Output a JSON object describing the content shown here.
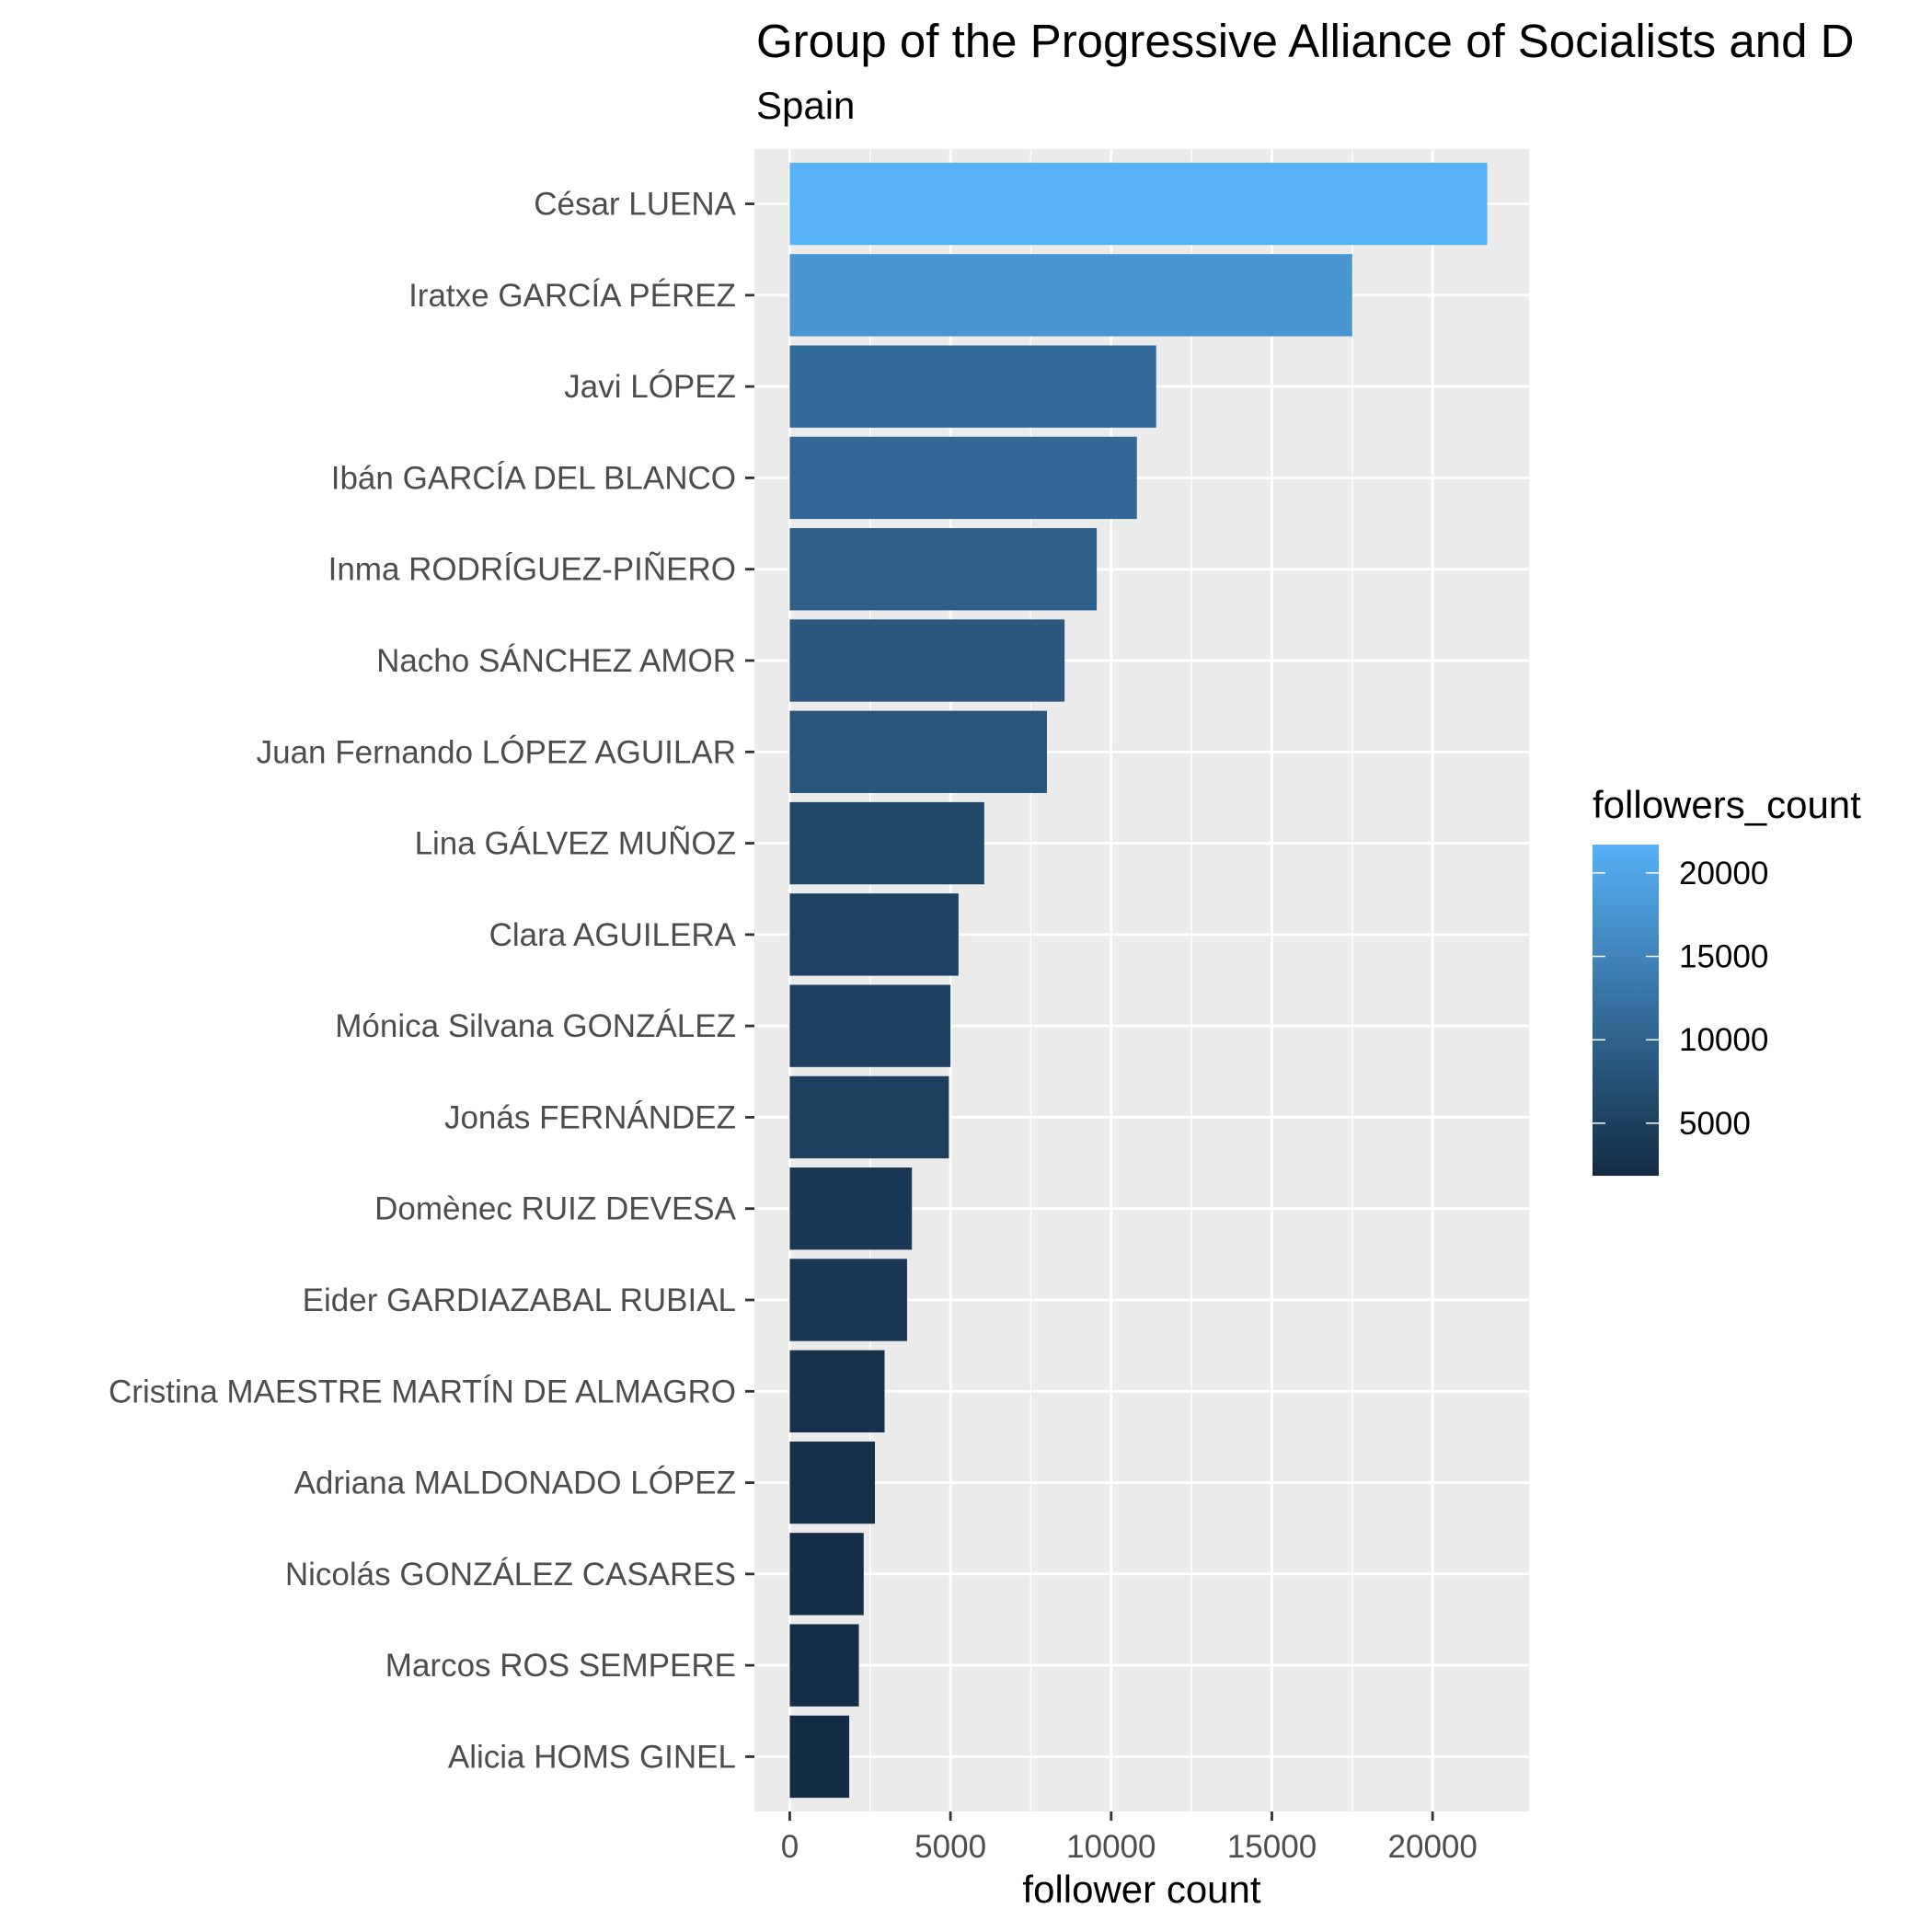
{
  "chart_data": {
    "type": "bar",
    "orientation": "horizontal",
    "title": "Group of the Progressive Alliance of Socialists and D",
    "subtitle": "Spain",
    "xlabel": "follower count",
    "ylabel": "",
    "xlim": [
      -1100,
      23000
    ],
    "xticks": [
      0,
      5000,
      10000,
      15000,
      20000
    ],
    "grid": true,
    "categories": [
      "César LUENA",
      "Iratxe GARCÍA PÉREZ",
      "Javi LÓPEZ",
      "Ibán GARCÍA DEL BLANCO",
      "Inma RODRÍGUEZ-PIÑERO",
      "Nacho SÁNCHEZ AMOR",
      "Juan Fernando LÓPEZ AGUILAR",
      "Lina GÁLVEZ MUÑOZ",
      "Clara AGUILERA",
      "Mónica Silvana GONZÁLEZ",
      "Jonás FERNÁNDEZ",
      "Domènec RUIZ DEVESA",
      "Eider GARDIAZABAL RUBIAL",
      "Cristina MAESTRE MARTÍN DE ALMAGRO",
      "Adriana MALDONADO LÓPEZ",
      "Nicolás GONZÁLEZ CASARES",
      "Marcos ROS SEMPERE",
      "Alicia HOMS GINEL"
    ],
    "values": [
      21700,
      17500,
      11400,
      10800,
      9550,
      8550,
      8000,
      6050,
      5250,
      5000,
      4950,
      3800,
      3650,
      2950,
      2650,
      2300,
      2150,
      1850
    ],
    "legend": {
      "title": "followers_count",
      "position": "right",
      "type": "gradient",
      "range": [
        1850,
        21700
      ],
      "ticks": [
        5000,
        10000,
        15000,
        20000
      ],
      "colors": {
        "low": "#132b43",
        "high": "#56b1f7"
      }
    },
    "colors": {
      "panel_background": "#ebebeb",
      "grid_major": "#ffffff",
      "axis_text": "#4d4d4d",
      "tick_mark": "#333333"
    }
  }
}
